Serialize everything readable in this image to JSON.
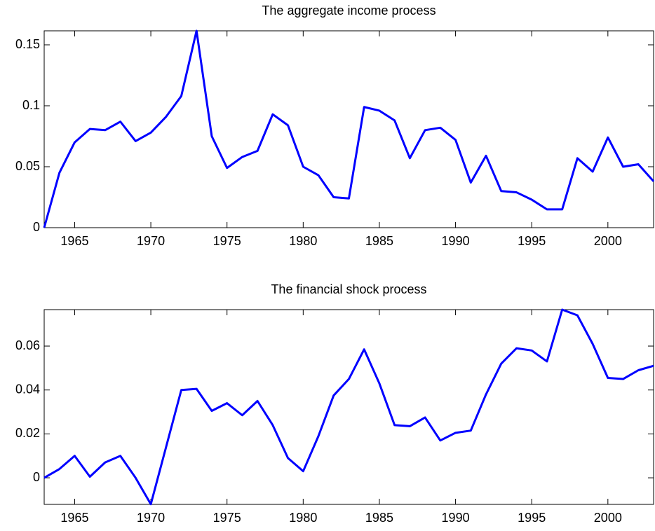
{
  "chart_data": [
    {
      "type": "line",
      "title": "The aggregate income process",
      "x": [
        1963,
        1964,
        1965,
        1966,
        1967,
        1968,
        1969,
        1970,
        1971,
        1972,
        1973,
        1974,
        1975,
        1976,
        1977,
        1978,
        1979,
        1980,
        1981,
        1982,
        1983,
        1984,
        1985,
        1986,
        1987,
        1988,
        1989,
        1990,
        1991,
        1992,
        1993,
        1994,
        1995,
        1996,
        1997,
        1998,
        1999,
        2000,
        2001,
        2002,
        2003
      ],
      "series": [
        {
          "color": "#0000ff",
          "values": [
            0,
            0.045,
            0.07,
            0.081,
            0.08,
            0.087,
            0.071,
            0.078,
            0.091,
            0.108,
            0.1615,
            0.075,
            0.049,
            0.058,
            0.063,
            0.093,
            0.084,
            0.05,
            0.043,
            0.025,
            0.024,
            0.099,
            0.096,
            0.088,
            0.057,
            0.08,
            0.082,
            0.072,
            0.037,
            0.059,
            0.03,
            0.029,
            0.023,
            0.015,
            0.015,
            0.057,
            0.046,
            0.074,
            0.05,
            0.052,
            0.038
          ]
        }
      ],
      "xlim": [
        1963,
        2003
      ],
      "xticks": [
        1965,
        1970,
        1975,
        1980,
        1985,
        1990,
        1995,
        2000
      ],
      "ylim": [
        0,
        0.1615
      ],
      "yticks": [
        0,
        0.05,
        0.1,
        0.15
      ]
    },
    {
      "type": "line",
      "title": "The financial shock process",
      "x": [
        1963,
        1964,
        1965,
        1966,
        1967,
        1968,
        1969,
        1970,
        1971,
        1972,
        1973,
        1974,
        1975,
        1976,
        1977,
        1978,
        1979,
        1980,
        1981,
        1982,
        1983,
        1984,
        1985,
        1986,
        1987,
        1988,
        1989,
        1990,
        1991,
        1992,
        1993,
        1994,
        1995,
        1996,
        1997,
        1998,
        1999,
        2000,
        2001,
        2002,
        2003
      ],
      "series": [
        {
          "color": "#0000ff",
          "values": [
            0,
            0.004,
            0.01,
            0.0005,
            0.007,
            0.01,
            0,
            -0.012,
            0.014,
            0.04,
            0.0405,
            0.0305,
            0.034,
            0.0285,
            0.035,
            0.024,
            0.009,
            0.003,
            0.019,
            0.0375,
            0.045,
            0.0585,
            0.043,
            0.024,
            0.0235,
            0.0275,
            0.017,
            0.0205,
            0.0215,
            0.038,
            0.052,
            0.059,
            0.058,
            0.053,
            0.0766,
            0.074,
            0.061,
            0.0455,
            0.045,
            0.049,
            0.051
          ]
        }
      ],
      "xlim": [
        1963,
        2003
      ],
      "xticks": [
        1965,
        1970,
        1975,
        1980,
        1985,
        1990,
        1995,
        2000
      ],
      "ylim": [
        -0.0121,
        0.0766
      ],
      "yticks": [
        0,
        0.02,
        0.04,
        0.06
      ]
    }
  ]
}
